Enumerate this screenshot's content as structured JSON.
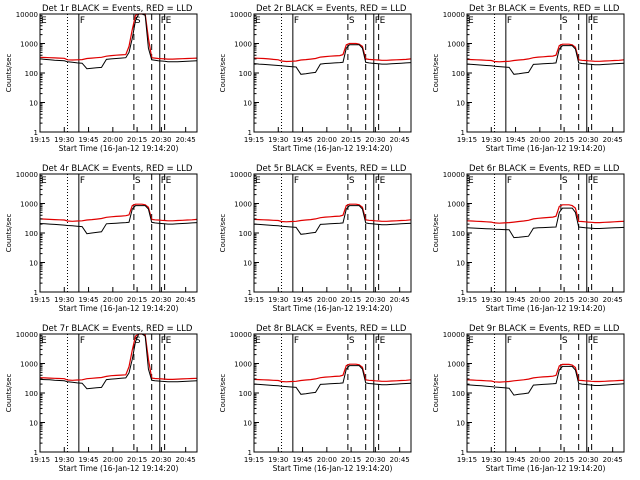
{
  "chart_data": {
    "type": "line",
    "shared": {
      "xlabel": "Start Time (16-Jan-12 19:14:20)",
      "ylabel": "Counts/sec",
      "x_ticks": [
        "19:15",
        "19:30",
        "19:45",
        "20:00",
        "20:15",
        "20:30",
        "20:45"
      ],
      "x_tick_minutes": [
        0,
        15,
        30,
        45,
        60,
        75,
        90
      ],
      "xlim_minutes": [
        0,
        97
      ],
      "y_scale": "log",
      "ylim": [
        1,
        10000
      ],
      "y_ticks": [
        1,
        10,
        100,
        1000,
        10000
      ],
      "y_tick_labels": [
        "1",
        "10",
        "100",
        "1000",
        "10000"
      ],
      "series_colors": {
        "events": "#000000",
        "lld": "#e00000"
      },
      "markers": [
        {
          "label": "E",
          "x": 0,
          "style": "dotted"
        },
        {
          "label": "",
          "x": 17,
          "style": "dotted"
        },
        {
          "label": "F",
          "x": 24,
          "style": "solid"
        },
        {
          "label": "S",
          "x": 58,
          "style": "dashed"
        },
        {
          "label": "",
          "x": 69,
          "style": "dashed"
        },
        {
          "label": "F",
          "x": 74,
          "style": "solid"
        },
        {
          "label": "E",
          "x": 77,
          "style": "dashed"
        }
      ],
      "x_minutes": [
        0,
        3,
        6,
        9,
        12,
        15,
        17,
        20,
        23,
        26,
        29,
        32,
        35,
        38,
        41,
        44,
        47,
        50,
        53,
        55,
        57,
        59,
        61,
        63,
        65,
        67,
        69,
        71,
        73,
        75,
        77,
        79,
        82,
        85,
        88,
        91,
        94,
        97
      ]
    },
    "panels": [
      {
        "title": "Det 1r BLACK = Events, RED = LLD",
        "events": [
          300,
          290,
          280,
          270,
          265,
          260,
          240,
          230,
          220,
          215,
          140,
          145,
          150,
          155,
          290,
          300,
          310,
          320,
          330,
          500,
          1500,
          6000,
          12000,
          12000,
          9000,
          700,
          280,
          270,
          260,
          255,
          250,
          240,
          240,
          240,
          245,
          250,
          255,
          260
        ],
        "lld": [
          340,
          335,
          330,
          325,
          320,
          315,
          280,
          275,
          280,
          285,
          310,
          320,
          330,
          340,
          370,
          390,
          400,
          410,
          420,
          800,
          3000,
          9000,
          14000,
          14000,
          10000,
          1500,
          330,
          320,
          310,
          305,
          300,
          295,
          295,
          300,
          305,
          310,
          315,
          320
        ]
      },
      {
        "title": "Det 2r BLACK = Events, RED = LLD",
        "events": [
          210,
          200,
          195,
          190,
          185,
          180,
          175,
          170,
          165,
          160,
          90,
          95,
          100,
          105,
          200,
          210,
          215,
          220,
          225,
          230,
          700,
          900,
          900,
          900,
          900,
          700,
          230,
          220,
          215,
          210,
          205,
          200,
          200,
          205,
          210,
          215,
          220,
          225
        ],
        "lld": [
          320,
          315,
          310,
          300,
          290,
          280,
          255,
          245,
          250,
          255,
          275,
          285,
          295,
          310,
          345,
          360,
          370,
          380,
          390,
          420,
          900,
          1000,
          1000,
          1000,
          950,
          800,
          300,
          290,
          285,
          280,
          275,
          270,
          270,
          275,
          280,
          285,
          290,
          300
        ]
      },
      {
        "title": "Det 3r BLACK = Events, RED = LLD",
        "events": [
          200,
          195,
          190,
          185,
          180,
          175,
          170,
          165,
          160,
          155,
          90,
          95,
          100,
          105,
          195,
          200,
          205,
          210,
          215,
          220,
          650,
          850,
          850,
          850,
          850,
          650,
          220,
          210,
          205,
          200,
          195,
          190,
          190,
          195,
          200,
          205,
          210,
          215
        ],
        "lld": [
          290,
          285,
          280,
          275,
          270,
          265,
          245,
          240,
          245,
          250,
          265,
          275,
          285,
          300,
          330,
          345,
          355,
          365,
          375,
          400,
          850,
          950,
          950,
          950,
          900,
          750,
          280,
          270,
          265,
          260,
          255,
          250,
          250,
          255,
          260,
          265,
          270,
          280
        ]
      },
      {
        "title": "Det 4r BLACK = Events, RED = LLD",
        "events": [
          210,
          205,
          200,
          195,
          190,
          185,
          180,
          175,
          170,
          165,
          95,
          100,
          105,
          110,
          205,
          210,
          215,
          220,
          225,
          230,
          650,
          850,
          850,
          850,
          850,
          650,
          230,
          220,
          215,
          210,
          205,
          200,
          200,
          205,
          210,
          215,
          220,
          225
        ],
        "lld": [
          300,
          295,
          290,
          285,
          280,
          275,
          255,
          250,
          255,
          260,
          275,
          285,
          295,
          310,
          340,
          355,
          365,
          375,
          385,
          410,
          850,
          950,
          950,
          950,
          900,
          750,
          290,
          280,
          275,
          270,
          265,
          260,
          260,
          265,
          270,
          275,
          280,
          290
        ]
      },
      {
        "title": "Det 5r BLACK = Events, RED = LLD",
        "events": [
          200,
          195,
          190,
          185,
          180,
          175,
          170,
          165,
          160,
          155,
          90,
          95,
          100,
          105,
          195,
          200,
          205,
          210,
          215,
          220,
          650,
          850,
          850,
          850,
          850,
          650,
          220,
          210,
          205,
          200,
          195,
          190,
          190,
          195,
          200,
          205,
          210,
          215
        ],
        "lld": [
          290,
          285,
          280,
          275,
          270,
          265,
          245,
          240,
          245,
          250,
          265,
          275,
          285,
          300,
          330,
          345,
          355,
          365,
          375,
          400,
          850,
          950,
          950,
          950,
          900,
          750,
          280,
          270,
          265,
          260,
          255,
          250,
          250,
          255,
          260,
          265,
          270,
          280
        ]
      },
      {
        "title": "Det 6r BLACK = Events, RED = LLD",
        "events": [
          150,
          148,
          145,
          142,
          140,
          138,
          135,
          132,
          130,
          128,
          70,
          72,
          75,
          78,
          145,
          150,
          152,
          155,
          158,
          160,
          500,
          700,
          700,
          700,
          700,
          500,
          160,
          155,
          150,
          148,
          145,
          142,
          142,
          145,
          148,
          150,
          152,
          155
        ],
        "lld": [
          260,
          255,
          250,
          245,
          240,
          235,
          220,
          215,
          220,
          225,
          235,
          245,
          255,
          270,
          300,
          315,
          325,
          335,
          345,
          370,
          800,
          900,
          900,
          900,
          850,
          700,
          250,
          245,
          240,
          235,
          230,
          225,
          225,
          230,
          235,
          240,
          245,
          250
        ]
      },
      {
        "title": "Det 7r BLACK = Events, RED = LLD",
        "events": [
          290,
          285,
          280,
          270,
          265,
          260,
          240,
          230,
          220,
          215,
          140,
          145,
          150,
          155,
          285,
          295,
          305,
          315,
          325,
          480,
          1400,
          5500,
          11000,
          11000,
          8500,
          650,
          270,
          260,
          255,
          250,
          245,
          240,
          240,
          240,
          245,
          250,
          255,
          260
        ],
        "lld": [
          330,
          325,
          320,
          315,
          310,
          305,
          275,
          270,
          275,
          280,
          305,
          315,
          325,
          335,
          365,
          385,
          395,
          405,
          415,
          780,
          2900,
          8500,
          13000,
          13000,
          9500,
          1400,
          320,
          310,
          305,
          300,
          295,
          290,
          290,
          295,
          300,
          305,
          310,
          315
        ]
      },
      {
        "title": "Det 8r BLACK = Events, RED = LLD",
        "events": [
          200,
          195,
          190,
          185,
          180,
          175,
          170,
          165,
          160,
          155,
          90,
          95,
          100,
          105,
          195,
          200,
          205,
          210,
          215,
          220,
          650,
          850,
          850,
          850,
          850,
          650,
          220,
          210,
          205,
          200,
          195,
          190,
          190,
          195,
          200,
          205,
          210,
          215
        ],
        "lld": [
          290,
          285,
          280,
          275,
          270,
          265,
          245,
          240,
          245,
          250,
          265,
          275,
          285,
          300,
          330,
          345,
          355,
          365,
          375,
          400,
          850,
          950,
          950,
          950,
          900,
          750,
          280,
          270,
          265,
          260,
          255,
          250,
          250,
          255,
          260,
          265,
          270,
          280
        ]
      },
      {
        "title": "Det 9r BLACK = Events, RED = LLD",
        "events": [
          190,
          185,
          180,
          175,
          170,
          165,
          160,
          155,
          150,
          145,
          85,
          90,
          95,
          100,
          185,
          190,
          195,
          200,
          205,
          210,
          600,
          800,
          800,
          800,
          800,
          600,
          210,
          200,
          195,
          190,
          185,
          180,
          180,
          185,
          190,
          195,
          200,
          205
        ],
        "lld": [
          280,
          275,
          270,
          265,
          260,
          255,
          240,
          235,
          240,
          245,
          260,
          270,
          280,
          295,
          325,
          340,
          350,
          360,
          370,
          395,
          830,
          930,
          930,
          930,
          880,
          730,
          270,
          265,
          260,
          255,
          250,
          245,
          245,
          250,
          255,
          260,
          265,
          270
        ]
      }
    ]
  }
}
